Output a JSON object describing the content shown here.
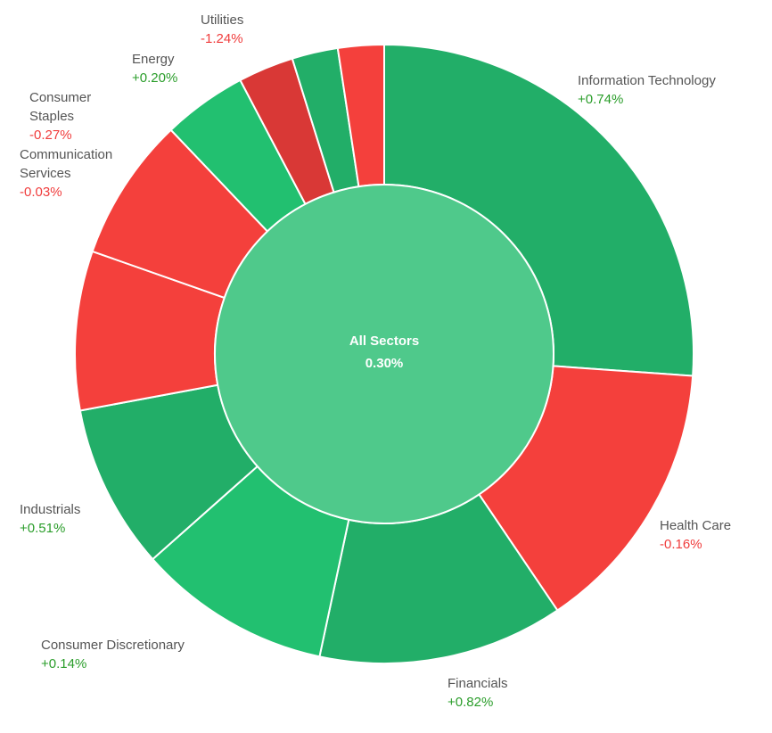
{
  "chart_data": {
    "type": "pie",
    "variant": "sunburst-donut",
    "center": {
      "label": "All Sectors",
      "value": "0.30%"
    },
    "segments": [
      {
        "name": "Information Technology",
        "change": "+0.74%",
        "weight": 26.1,
        "color": "#22ae68"
      },
      {
        "name": "Health Care",
        "change": "-0.16%",
        "weight": 14.4,
        "color": "#f4403c"
      },
      {
        "name": "Financials",
        "change": "+0.82%",
        "weight": 12.8,
        "color": "#22ae68"
      },
      {
        "name": "Consumer Discretionary",
        "change": "+0.14%",
        "weight": 10.1,
        "color": "#22c070"
      },
      {
        "name": "Industrials",
        "change": "+0.51%",
        "weight": 8.6,
        "color": "#22ae68"
      },
      {
        "name": "Communication Services",
        "change": "-0.03%",
        "weight": 8.3,
        "color": "#f4403c"
      },
      {
        "name": "Consumer Staples",
        "change": "-0.27%",
        "weight": 7.5,
        "color": "#f4403c"
      },
      {
        "name": "Energy",
        "change": "+0.20%",
        "weight": 4.4,
        "color": "#22c070"
      },
      {
        "name": "Utilities",
        "change": "-1.24%",
        "weight": 2.9,
        "color": "#d93836"
      },
      {
        "name": "",
        "change": "",
        "weight": 2.4,
        "color": "#22ae68"
      },
      {
        "name": "",
        "change": "",
        "weight": 2.4,
        "color": "#f4403c"
      }
    ],
    "center_color": "#4fc98b",
    "positive_text_color": "#2a9d2a",
    "negative_text_color": "#f03c3c"
  }
}
